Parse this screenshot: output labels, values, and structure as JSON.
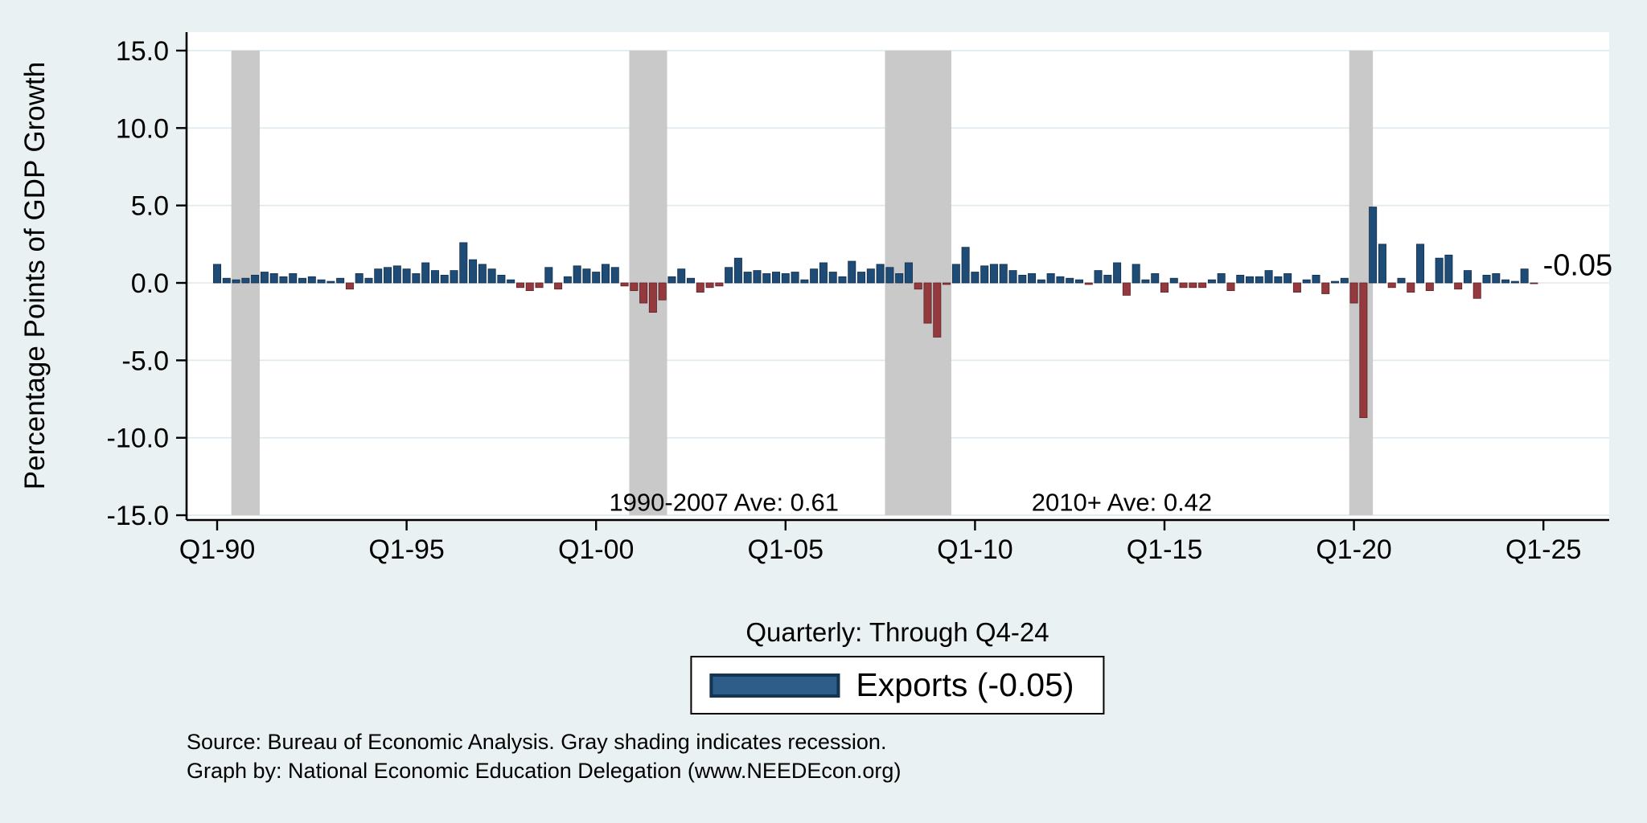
{
  "figure": {
    "background": "#e9f1f2",
    "plot_background": "#ffffff"
  },
  "chart_data": {
    "type": "bar",
    "title": "",
    "ylabel": "Percentage Points of GDP Growth",
    "xlabel": "Quarterly: Through Q4-24",
    "ylim": [
      -15,
      15
    ],
    "grid": "on",
    "legend_position": "bottom-center",
    "yticks": [
      15,
      10,
      5,
      0,
      -5,
      -10,
      -15
    ],
    "ytick_labels": [
      "15.0",
      "10.0",
      "5.0",
      "0.0",
      "-5.0",
      "-10.0",
      "-15.0"
    ],
    "xtick_indices": [
      0,
      20,
      40,
      60,
      80,
      100,
      120,
      140
    ],
    "xtick_labels": [
      "Q1-90",
      "Q1-95",
      "Q1-00",
      "Q1-05",
      "Q1-10",
      "Q1-15",
      "Q1-20",
      "Q1-25"
    ],
    "series": [
      {
        "name": "Exports",
        "start": "1990Q1",
        "end": "2024Q4",
        "frequency": "quarterly",
        "last_value": -0.05,
        "values": [
          1.2,
          0.3,
          0.2,
          0.3,
          0.5,
          0.7,
          0.6,
          0.4,
          0.6,
          0.3,
          0.4,
          0.2,
          0.1,
          0.3,
          -0.4,
          0.6,
          0.3,
          0.9,
          1.0,
          1.1,
          0.9,
          0.6,
          1.3,
          0.8,
          0.5,
          0.8,
          2.6,
          1.5,
          1.2,
          0.9,
          0.5,
          0.2,
          -0.3,
          -0.5,
          -0.3,
          1.0,
          -0.4,
          0.4,
          1.1,
          0.9,
          0.7,
          1.2,
          1.0,
          -0.2,
          -0.5,
          -1.3,
          -1.9,
          -1.1,
          0.4,
          0.9,
          0.3,
          -0.6,
          -0.3,
          -0.2,
          1.0,
          1.6,
          0.7,
          0.8,
          0.6,
          0.7,
          0.6,
          0.7,
          0.2,
          0.9,
          1.3,
          0.7,
          0.4,
          1.4,
          0.7,
          0.9,
          1.2,
          1.0,
          0.6,
          1.3,
          -0.4,
          -2.6,
          -3.5,
          -0.1,
          1.2,
          2.3,
          0.7,
          1.1,
          1.2,
          1.2,
          0.8,
          0.5,
          0.6,
          0.2,
          0.6,
          0.4,
          0.3,
          0.2,
          -0.1,
          0.8,
          0.5,
          1.3,
          -0.8,
          1.2,
          0.2,
          0.6,
          -0.6,
          0.3,
          -0.3,
          -0.3,
          -0.3,
          0.2,
          0.6,
          -0.5,
          0.5,
          0.4,
          0.4,
          0.8,
          0.4,
          0.6,
          -0.6,
          0.2,
          0.5,
          -0.7,
          0.1,
          0.3,
          -1.3,
          -8.7,
          4.9,
          2.5,
          -0.3,
          0.3,
          -0.6,
          2.5,
          -0.5,
          1.6,
          1.8,
          -0.4,
          0.8,
          -1.0,
          0.5,
          0.6,
          0.2,
          0.1,
          0.9,
          -0.05
        ]
      }
    ],
    "recession_bands": [
      [
        1.5,
        4.5
      ],
      [
        43.5,
        47.5
      ],
      [
        70.5,
        77.5
      ],
      [
        119.5,
        122.0
      ]
    ],
    "annotations": [
      {
        "text": "1990-2007 Ave: 0.61",
        "xi": 53.5,
        "yv": -14.7,
        "size": 31,
        "anchor": "middle"
      },
      {
        "text": "2010+ Ave: 0.42",
        "xi": 95.5,
        "yv": -14.7,
        "size": 31,
        "anchor": "middle"
      },
      {
        "text": "-0.05",
        "xi": 147.3,
        "yv": 0.5,
        "size": 38,
        "anchor": "end"
      }
    ],
    "positive_color": "#1e4c77",
    "negative_color": "#943a3e",
    "recession_color": "#c9c9c9",
    "grid_color": "#dde9ee"
  },
  "legend": {
    "label": "Exports (-0.05)",
    "swatch_color": "#2e5d89"
  },
  "notes": {
    "source": "Source: Bureau of Economic Analysis. Gray shading indicates recession.",
    "credit": "Graph by: National Economic Education Delegation (www.NEEDEcon.org)"
  }
}
